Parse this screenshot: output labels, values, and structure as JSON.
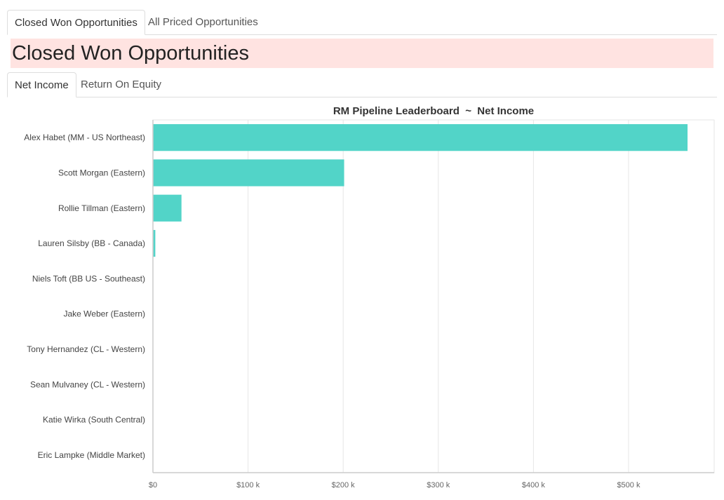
{
  "top_tabs": [
    {
      "label": "Closed Won Opportunities",
      "active": true
    },
    {
      "label": "All Priced Opportunities",
      "active": false
    }
  ],
  "page_heading": "Closed Won Opportunities",
  "sub_tabs": [
    {
      "label": "Net Income",
      "active": true
    },
    {
      "label": "Return On Equity",
      "active": false
    }
  ],
  "colors": {
    "bar": "#52d4c8",
    "banner": "#ffe3e1",
    "grid": "#e6e6e6",
    "axis": "#cccccc"
  },
  "chart_data": {
    "type": "bar",
    "orientation": "horizontal",
    "title": "RM Pipeline Leaderboard  ~  Net Income",
    "xlabel": "",
    "ylabel": "",
    "categories": [
      "Alex Habet (MM - US Northeast)",
      "Scott Morgan (Eastern)",
      "Rollie Tillman (Eastern)",
      "Lauren Silsby (BB - Canada)",
      "Niels Toft (BB US - Southeast)",
      "Jake Weber (Eastern)",
      "Tony Hernandez (CL - Western)",
      "Sean Mulvaney (CL - Western)",
      "Katie Wirka (South Central)",
      "Eric Lampke (Middle Market)"
    ],
    "values": [
      562000,
      201000,
      30000,
      2500,
      0,
      0,
      0,
      0,
      0,
      0
    ],
    "xlim": [
      0,
      590000
    ],
    "x_ticks": [
      0,
      100000,
      200000,
      300000,
      400000,
      500000
    ],
    "x_tick_labels": [
      "$0",
      "$100 k",
      "$200 k",
      "$300 k",
      "$400 k",
      "$500 k"
    ],
    "grid": true,
    "legend": "none"
  }
}
